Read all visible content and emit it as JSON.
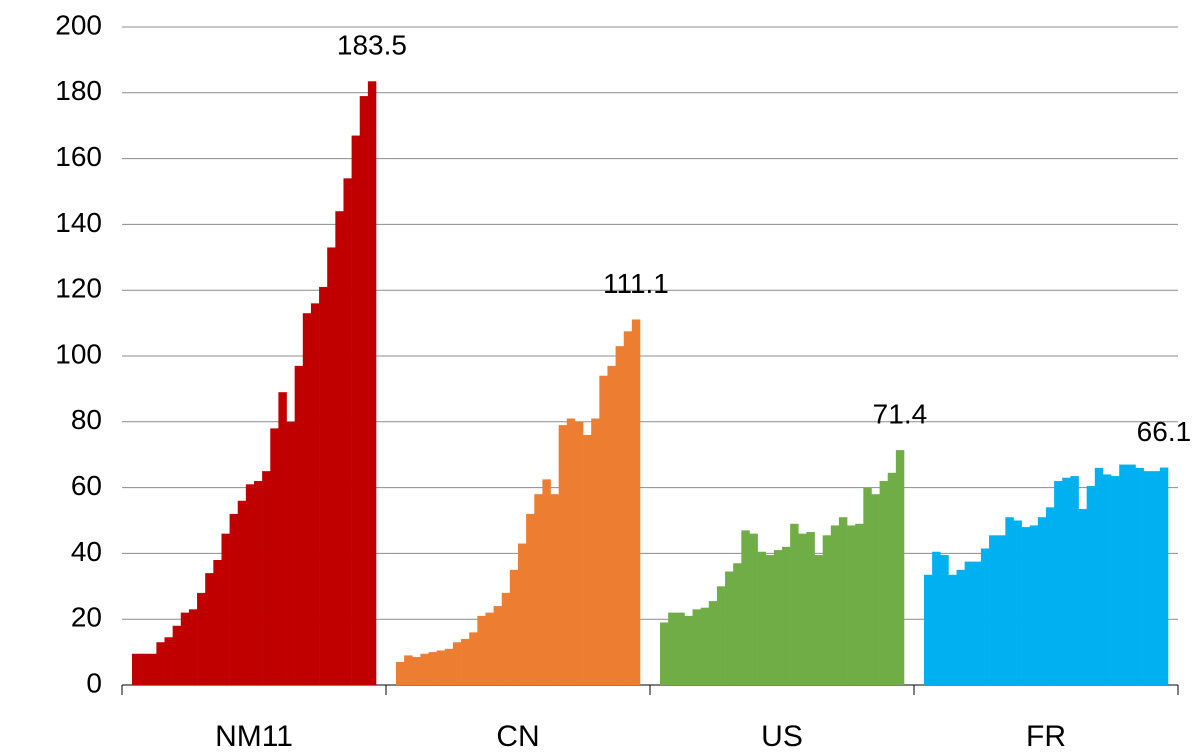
{
  "chart_data": {
    "type": "bar",
    "categories": [
      "NM11",
      "CN",
      "US",
      "FR"
    ],
    "groups": [
      {
        "color": "#c00000",
        "values": [
          9.5,
          9.5,
          9.5,
          13,
          14.5,
          18,
          22,
          23,
          28,
          34,
          38,
          46,
          52,
          56,
          61,
          62,
          65,
          78,
          89,
          80,
          97,
          113,
          116,
          121,
          133,
          144,
          154,
          167,
          179,
          183.5
        ]
      },
      {
        "color": "#ed7d31",
        "values": [
          7,
          9,
          8.5,
          9.5,
          10,
          10.5,
          11,
          13,
          14,
          16,
          21,
          22,
          24,
          28,
          35,
          43,
          52,
          58,
          62.5,
          58,
          79,
          81,
          80,
          76,
          81,
          94,
          97,
          103,
          107.5,
          111.1
        ]
      },
      {
        "color": "#70ad47",
        "values": [
          19,
          22,
          22,
          21,
          23,
          23.5,
          25.5,
          30,
          34.5,
          37,
          47,
          46,
          40.5,
          39.5,
          41,
          42,
          49,
          46,
          46.5,
          39.5,
          45.5,
          48.5,
          51,
          48.5,
          49,
          60,
          58,
          62,
          64.5,
          71.4
        ]
      },
      {
        "color": "#00b0f0",
        "values": [
          33.5,
          40.5,
          39.5,
          33.5,
          35,
          37.5,
          37.5,
          41.5,
          45.5,
          45.5,
          51,
          50,
          48,
          48.5,
          51,
          54,
          62,
          63,
          63.5,
          53.5,
          60.5,
          66,
          64,
          63.5,
          67,
          67,
          66,
          65,
          65,
          66.1
        ]
      }
    ],
    "ylim": [
      0,
      200
    ],
    "yticks": [
      0,
      20,
      40,
      60,
      80,
      100,
      120,
      140,
      160,
      180,
      200
    ],
    "grid": true
  }
}
